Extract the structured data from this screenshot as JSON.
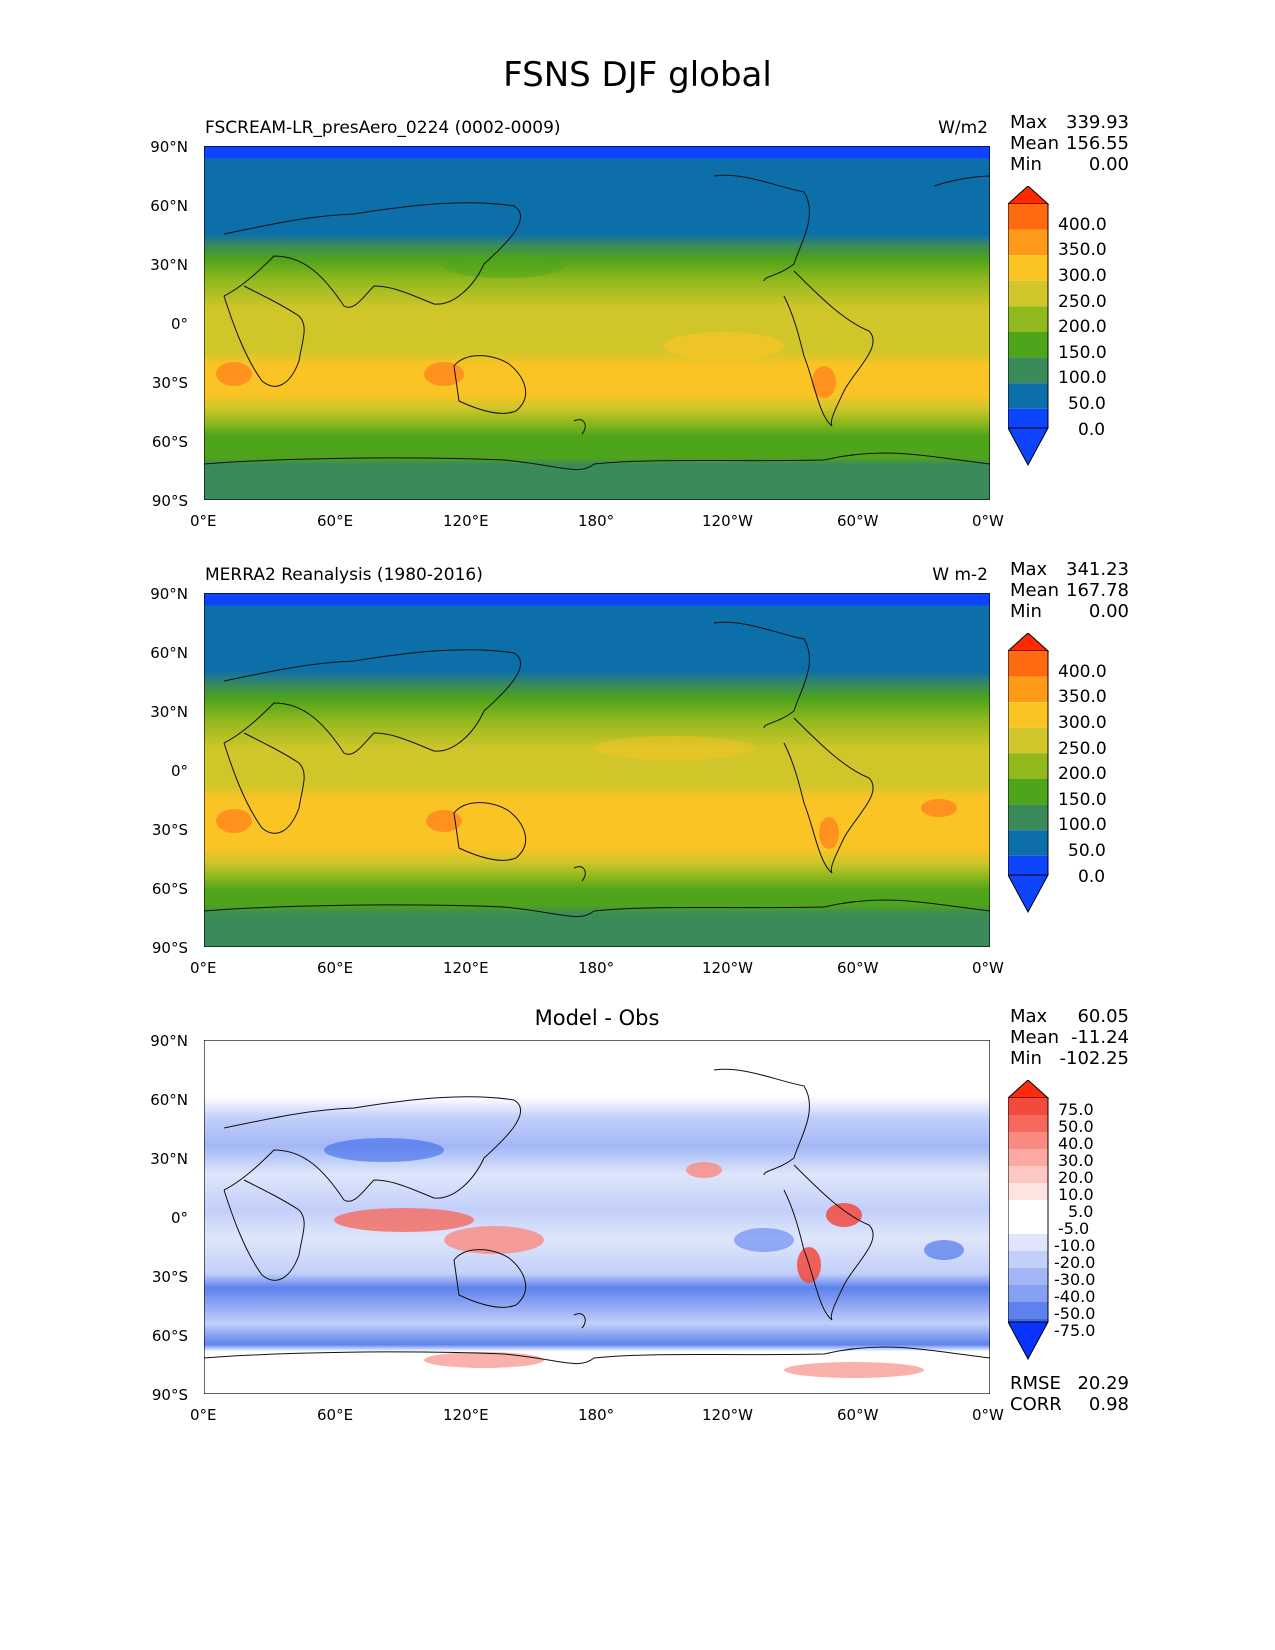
{
  "figure": {
    "title": "FSNS DJF global"
  },
  "axes": {
    "lat_labels": [
      "90°N",
      "60°N",
      "30°N",
      "0°",
      "30°S",
      "60°S",
      "90°S"
    ],
    "lon_labels": [
      "0°E",
      "60°E",
      "120°E",
      "180°",
      "120°W",
      "60°W",
      "0°W"
    ]
  },
  "panels": [
    {
      "name": "model",
      "left_title": "FSCREAM-LR_presAero_0224 (0002-0009)",
      "right_title": "W/m2",
      "center_title": "",
      "stats": [
        {
          "label": "Max",
          "value": "339.93"
        },
        {
          "label": "Mean",
          "value": "156.55"
        },
        {
          "label": "Min",
          "value": "0.00"
        }
      ],
      "colorbar": {
        "labels": [
          "400.0",
          "350.0",
          "300.0",
          "250.0",
          "200.0",
          "150.0",
          "100.0",
          "50.0",
          "0.0"
        ],
        "colors": [
          "#ff2a00",
          "#ff6a10",
          "#fd9a18",
          "#fbc425",
          "#d0c62a",
          "#91b91e",
          "#4ea41a",
          "#3a8a5a",
          "#0d6faa",
          "#0f44ff"
        ]
      }
    },
    {
      "name": "obs",
      "left_title": "MERRA2 Reanalysis (1980-2016)",
      "right_title": "W m-2",
      "center_title": "",
      "stats": [
        {
          "label": "Max",
          "value": "341.23"
        },
        {
          "label": "Mean",
          "value": "167.78"
        },
        {
          "label": "Min",
          "value": "0.00"
        }
      ],
      "colorbar": {
        "labels": [
          "400.0",
          "350.0",
          "300.0",
          "250.0",
          "200.0",
          "150.0",
          "100.0",
          "50.0",
          "0.0"
        ],
        "colors": [
          "#ff2a00",
          "#ff6a10",
          "#fd9a18",
          "#fbc425",
          "#d0c62a",
          "#91b91e",
          "#4ea41a",
          "#3a8a5a",
          "#0d6faa",
          "#0f44ff"
        ]
      }
    },
    {
      "name": "diff",
      "left_title": "",
      "right_title": "",
      "center_title": "Model - Obs",
      "stats": [
        {
          "label": "Max",
          "value": "60.05"
        },
        {
          "label": "Mean",
          "value": "-11.24"
        },
        {
          "label": "Min",
          "value": "-102.25"
        }
      ],
      "bottom_stats": [
        {
          "label": "RMSE",
          "value": "20.29"
        },
        {
          "label": "CORR",
          "value": "0.98"
        }
      ],
      "colorbar": {
        "labels": [
          "75.0",
          "50.0",
          "40.0",
          "30.0",
          "20.0",
          "10.0",
          "5.0",
          "-5.0",
          "-10.0",
          "-20.0",
          "-30.0",
          "-40.0",
          "-50.0",
          "-75.0"
        ],
        "colors": [
          "#ff2a10",
          "#f44a3e",
          "#f66a5e",
          "#f98a80",
          "#fba9a2",
          "#fdc8c3",
          "#fee4e1",
          "#ffffff",
          "#dfe6fb",
          "#c2cffa",
          "#a3b7f6",
          "#86a0f2",
          "#5d82ee",
          "#3967ea",
          "#1b4cf1",
          "#0a33ff"
        ]
      }
    }
  ]
}
